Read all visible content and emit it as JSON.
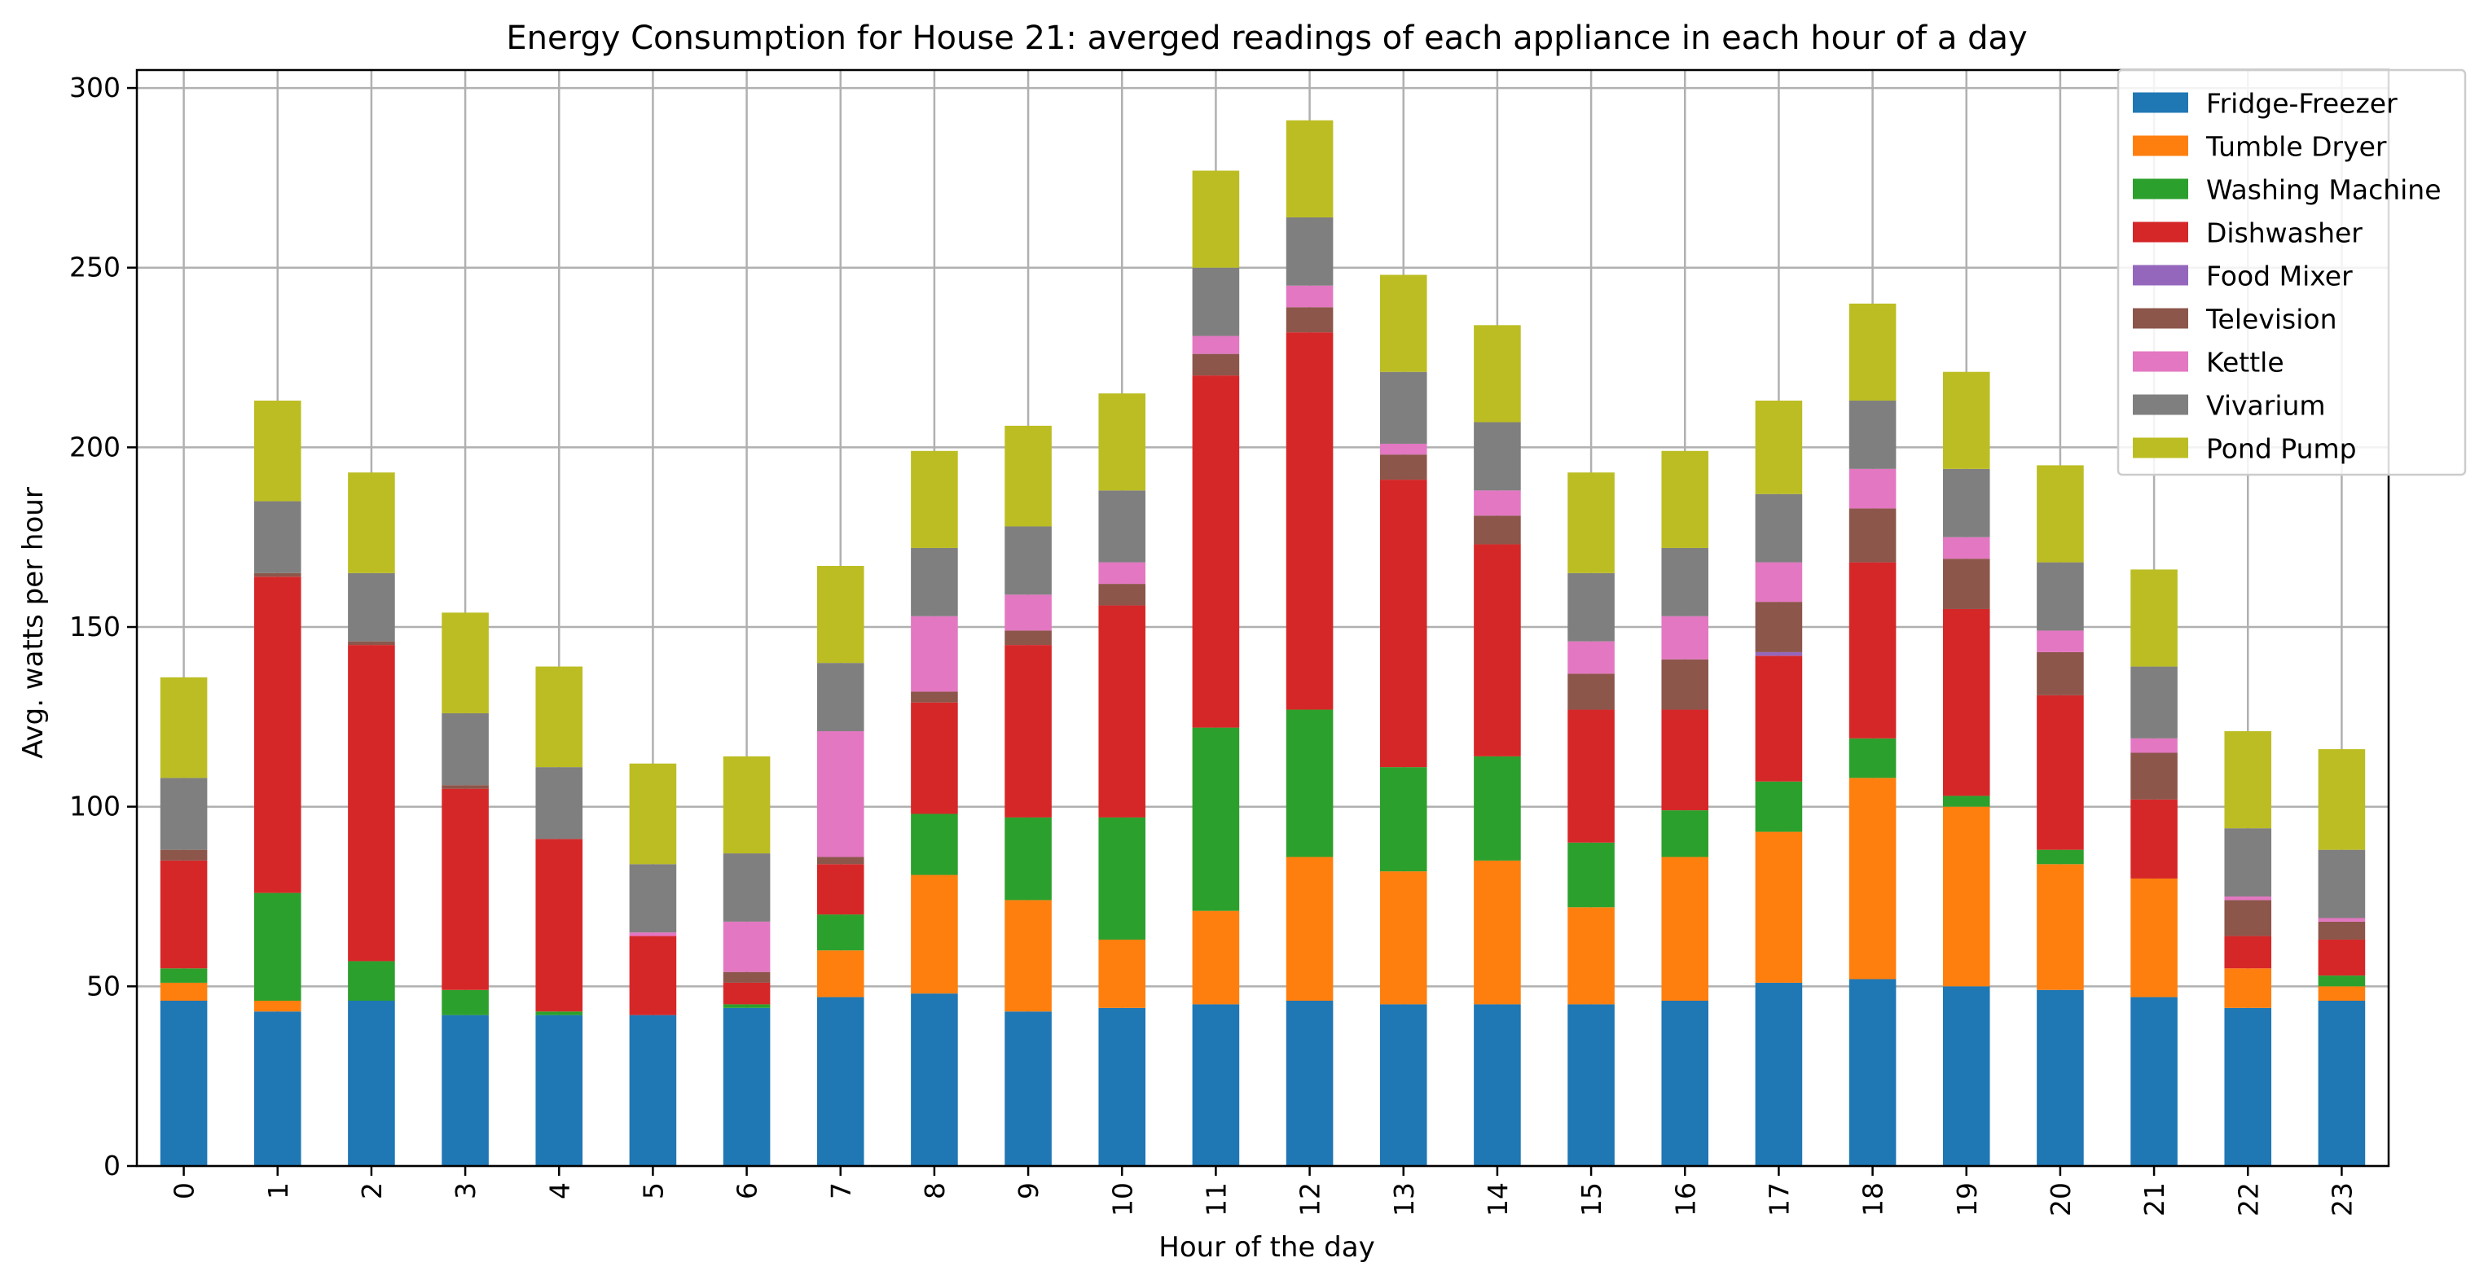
{
  "chart_data": {
    "type": "bar",
    "stacked": true,
    "title": "Energy Consumption for House 21: averged readings of each appliance in each hour of a day",
    "xlabel": "Hour of the day",
    "ylabel": "Avg. watts per hour",
    "ylim": [
      0,
      305
    ],
    "yticks": [
      0,
      50,
      100,
      150,
      200,
      250,
      300
    ],
    "grid": true,
    "legend_position": "top-right",
    "categories": [
      "0",
      "1",
      "2",
      "3",
      "4",
      "5",
      "6",
      "7",
      "8",
      "9",
      "10",
      "11",
      "12",
      "13",
      "14",
      "15",
      "16",
      "17",
      "18",
      "19",
      "20",
      "21",
      "22",
      "23"
    ],
    "series": [
      {
        "name": "Fridge-Freezer",
        "color": "#1f77b4",
        "values": [
          46,
          43,
          46,
          42,
          42,
          42,
          44,
          47,
          48,
          43,
          44,
          45,
          46,
          45,
          45,
          45,
          46,
          51,
          52,
          50,
          49,
          47,
          44,
          46
        ]
      },
      {
        "name": "Tumble Dryer",
        "color": "#ff7f0e",
        "values": [
          5,
          3,
          0,
          0,
          0,
          0,
          0,
          13,
          33,
          31,
          19,
          26,
          40,
          37,
          40,
          27,
          40,
          42,
          56,
          50,
          35,
          33,
          11,
          4
        ]
      },
      {
        "name": "Washing Machine",
        "color": "#2ca02c",
        "values": [
          4,
          30,
          11,
          7,
          1,
          0,
          1,
          10,
          17,
          23,
          34,
          51,
          41,
          29,
          29,
          18,
          13,
          14,
          11,
          3,
          4,
          0,
          0,
          3
        ]
      },
      {
        "name": "Dishwasher",
        "color": "#d62728",
        "values": [
          30,
          88,
          88,
          56,
          48,
          22,
          6,
          14,
          31,
          48,
          59,
          98,
          105,
          80,
          59,
          37,
          28,
          35,
          49,
          52,
          43,
          22,
          9,
          10
        ]
      },
      {
        "name": "Food Mixer",
        "color": "#9467bd",
        "values": [
          0,
          0,
          0,
          0,
          0,
          0,
          0,
          0,
          0,
          0,
          0,
          0,
          0,
          0,
          0,
          0,
          0,
          1,
          0,
          0,
          0,
          0,
          0,
          0
        ]
      },
      {
        "name": "Television",
        "color": "#8c564b",
        "values": [
          3,
          1,
          1,
          1,
          0,
          0,
          3,
          2,
          3,
          4,
          6,
          6,
          7,
          7,
          8,
          10,
          14,
          14,
          15,
          14,
          12,
          13,
          10,
          5
        ]
      },
      {
        "name": "Kettle",
        "color": "#e377c2",
        "values": [
          0,
          0,
          0,
          0,
          0,
          1,
          14,
          35,
          21,
          10,
          6,
          5,
          6,
          3,
          7,
          9,
          12,
          11,
          11,
          6,
          6,
          4,
          1,
          1
        ]
      },
      {
        "name": "Vivarium",
        "color": "#7f7f7f",
        "values": [
          20,
          20,
          19,
          20,
          20,
          19,
          19,
          19,
          19,
          19,
          20,
          19,
          19,
          20,
          19,
          19,
          19,
          19,
          19,
          19,
          19,
          20,
          19,
          19
        ]
      },
      {
        "name": "Pond Pump",
        "color": "#bcbd22",
        "values": [
          28,
          28,
          28,
          28,
          28,
          28,
          27,
          27,
          27,
          28,
          27,
          27,
          27,
          27,
          27,
          28,
          27,
          26,
          27,
          27,
          27,
          27,
          27,
          28
        ]
      }
    ]
  }
}
